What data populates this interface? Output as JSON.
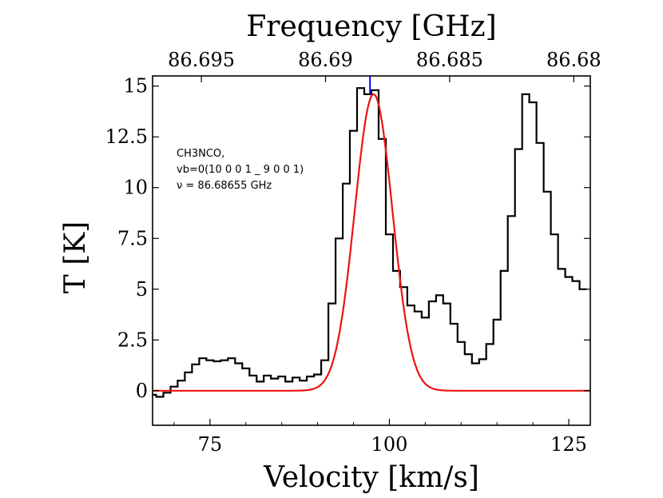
{
  "chart_data": {
    "type": "line",
    "title": "",
    "xlabel": "Velocity [km/s]",
    "ylabel": "T [K]",
    "top_xlabel": "Frequency [GHz]",
    "xlim": [
      67,
      128
    ],
    "ylim": [
      -1.7,
      15.5
    ],
    "x_ticks": [
      {
        "value": 75,
        "label": "75"
      },
      {
        "value": 100,
        "label": "100"
      },
      {
        "value": 125,
        "label": "125"
      }
    ],
    "y_ticks": [
      {
        "value": 0,
        "label": "0"
      },
      {
        "value": 2.5,
        "label": "2.5"
      },
      {
        "value": 5,
        "label": "5"
      },
      {
        "value": 7.5,
        "label": "7.5"
      },
      {
        "value": 10,
        "label": "10"
      },
      {
        "value": 12.5,
        "label": "12.5"
      },
      {
        "value": 15,
        "label": "15"
      }
    ],
    "top_ticks": [
      {
        "velocity": 73.8,
        "label": "86.695"
      },
      {
        "velocity": 91.1,
        "label": "86.69"
      },
      {
        "velocity": 108.4,
        "label": "86.685"
      },
      {
        "velocity": 125.7,
        "label": "86.68"
      }
    ],
    "annotation": [
      "CH3NCO,",
      "vb=0(10 0 0 1 _ 9 0 0 1)",
      "ν = 86.68655 GHz"
    ],
    "line_marker": {
      "velocity": 97.3,
      "color": "#0000ff"
    },
    "colors": {
      "spectrum": "#000000",
      "fit": "#ee1111",
      "marker": "#0000ff"
    },
    "series": [
      {
        "name": "observed spectrum",
        "style": "steps",
        "color": "#000000",
        "x": [
          67.0,
          68.0,
          69.0,
          70.0,
          71.0,
          72.0,
          73.0,
          74.0,
          75.0,
          76.0,
          77.0,
          78.0,
          79.0,
          80.0,
          81.0,
          82.0,
          83.0,
          84.0,
          85.0,
          86.0,
          87.0,
          88.0,
          89.0,
          90.0,
          91.0,
          92.0,
          93.0,
          94.0,
          95.0,
          96.0,
          97.0,
          98.0,
          99.0,
          100.0,
          101.0,
          102.0,
          103.0,
          104.0,
          105.0,
          106.0,
          107.0,
          108.0,
          109.0,
          110.0,
          111.0,
          112.0,
          113.0,
          114.0,
          115.0,
          116.0,
          117.0,
          118.0,
          119.0,
          120.0,
          121.0,
          122.0,
          123.0,
          124.0,
          125.0,
          126.0,
          127.0
        ],
        "y": [
          -0.2,
          -0.3,
          -0.1,
          0.2,
          0.5,
          0.9,
          1.3,
          1.6,
          1.5,
          1.45,
          1.5,
          1.6,
          1.35,
          1.1,
          0.75,
          0.45,
          0.75,
          0.6,
          0.7,
          0.45,
          0.65,
          0.5,
          0.7,
          0.8,
          1.5,
          4.3,
          7.5,
          10.2,
          12.8,
          14.9,
          14.6,
          14.8,
          12.4,
          7.7,
          5.9,
          5.1,
          4.2,
          3.9,
          3.6,
          4.4,
          4.7,
          4.3,
          3.3,
          2.4,
          1.8,
          1.35,
          1.55,
          2.3,
          3.5,
          5.9,
          8.6,
          11.9,
          14.6,
          14.2,
          12.2,
          9.8,
          7.7,
          6.0,
          5.6,
          5.4,
          5.0
        ]
      },
      {
        "name": "gaussian fit",
        "style": "line",
        "color": "#ee1111",
        "amplitude": 14.6,
        "center": 97.8,
        "fwhm": 6.2
      }
    ]
  }
}
